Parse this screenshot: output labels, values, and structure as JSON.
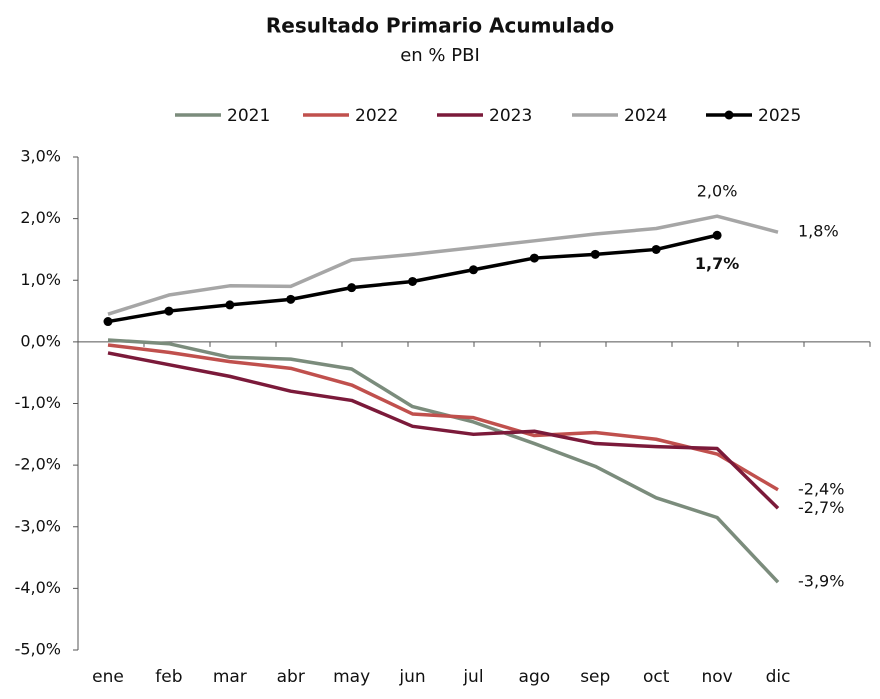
{
  "chart_data": {
    "type": "line",
    "title": "Resultado Primario Acumulado",
    "subtitle": "en % PBI",
    "categories": [
      "ene",
      "feb",
      "mar",
      "abr",
      "may",
      "jun",
      "jul",
      "ago",
      "sep",
      "oct",
      "nov",
      "dic"
    ],
    "ylim": [
      -5,
      3
    ],
    "yticks": [
      {
        "value": -5,
        "label": "-5,0%"
      },
      {
        "value": -4,
        "label": "-4,0%"
      },
      {
        "value": -3,
        "label": "-3,0%"
      },
      {
        "value": -2,
        "label": "-2,0%"
      },
      {
        "value": -1,
        "label": "-1,0%"
      },
      {
        "value": 0,
        "label": "0,0%"
      },
      {
        "value": 1,
        "label": "1,0%"
      },
      {
        "value": 2,
        "label": "2,0%"
      },
      {
        "value": 3,
        "label": "3,0%"
      }
    ],
    "grid": false,
    "legend": "top",
    "series": [
      {
        "name": "2021",
        "color": "#7b8c7c",
        "values": [
          0.03,
          -0.03,
          -0.25,
          -0.28,
          -0.44,
          -1.05,
          -1.3,
          -1.65,
          -2.02,
          -2.53,
          -2.85,
          -3.9
        ],
        "value_labels": [
          null,
          null,
          null,
          null,
          null,
          null,
          null,
          null,
          null,
          null,
          null,
          "-3,9%"
        ]
      },
      {
        "name": "2022",
        "color": "#c0504d",
        "values": [
          -0.05,
          -0.17,
          -0.32,
          -0.43,
          -0.7,
          -1.17,
          -1.23,
          -1.52,
          -1.47,
          -1.58,
          -1.82,
          -2.4
        ],
        "value_labels": [
          null,
          null,
          null,
          null,
          null,
          null,
          null,
          null,
          null,
          null,
          null,
          "-2,4%"
        ]
      },
      {
        "name": "2023",
        "color": "#7b1a3a",
        "values": [
          -0.18,
          -0.37,
          -0.56,
          -0.8,
          -0.95,
          -1.37,
          -1.5,
          -1.45,
          -1.65,
          -1.7,
          -1.73,
          -2.7
        ],
        "value_labels": [
          null,
          null,
          null,
          null,
          null,
          null,
          null,
          null,
          null,
          null,
          null,
          "-2,7%"
        ]
      },
      {
        "name": "2024",
        "color": "#a6a6a6",
        "values": [
          0.45,
          0.76,
          0.91,
          0.9,
          1.33,
          1.42,
          1.53,
          1.64,
          1.75,
          1.84,
          2.04,
          1.78
        ],
        "value_labels": [
          null,
          null,
          null,
          null,
          null,
          null,
          null,
          null,
          null,
          null,
          "2,0%",
          "1,8%"
        ]
      },
      {
        "name": "2025",
        "color": "#000000",
        "marker": true,
        "values": [
          0.33,
          0.5,
          0.6,
          0.69,
          0.88,
          0.98,
          1.17,
          1.36,
          1.42,
          1.5,
          1.73,
          null
        ],
        "value_labels": [
          null,
          null,
          null,
          null,
          null,
          null,
          null,
          null,
          null,
          null,
          "1,7%",
          null
        ]
      }
    ]
  }
}
